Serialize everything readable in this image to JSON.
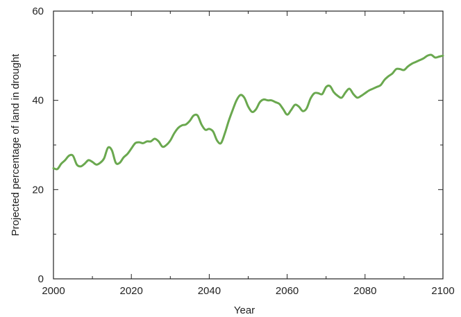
{
  "chart_data": {
    "type": "line",
    "title": "",
    "xlabel": "Year",
    "ylabel": "Projected percentage of land in drought",
    "xlim": [
      2000,
      2100
    ],
    "ylim": [
      0,
      60
    ],
    "x_ticks": [
      "2000",
      "2020",
      "2040",
      "2060",
      "2080",
      "2100"
    ],
    "y_ticks": [
      "0",
      "20",
      "40",
      "60"
    ],
    "grid": false,
    "legend": "none",
    "colors": {
      "line": "#6aa84f",
      "axis": "#222222"
    },
    "series": [
      {
        "x": [
          2000,
          2001,
          2002,
          2003,
          2004,
          2005,
          2006,
          2007,
          2008,
          2009,
          2010,
          2011,
          2012,
          2013,
          2014,
          2015,
          2016,
          2017,
          2018,
          2019,
          2020,
          2021,
          2022,
          2023,
          2024,
          2025,
          2026,
          2027,
          2028,
          2029,
          2030,
          2031,
          2032,
          2033,
          2034,
          2035,
          2036,
          2037,
          2038,
          2039,
          2040,
          2041,
          2042,
          2043,
          2044,
          2045,
          2046,
          2047,
          2048,
          2049,
          2050,
          2051,
          2052,
          2053,
          2054,
          2055,
          2056,
          2057,
          2058,
          2059,
          2060,
          2061,
          2062,
          2063,
          2064,
          2065,
          2066,
          2067,
          2068,
          2069,
          2070,
          2071,
          2072,
          2073,
          2074,
          2075,
          2076,
          2077,
          2078,
          2079,
          2080,
          2081,
          2082,
          2083,
          2084,
          2085,
          2086,
          2087,
          2088,
          2089,
          2090,
          2091,
          2092,
          2093,
          2094,
          2095,
          2096,
          2097,
          2098,
          2099,
          2100
        ],
        "values": [
          24.8,
          24.6,
          25.8,
          26.6,
          27.6,
          27.6,
          25.6,
          25.2,
          25.8,
          26.6,
          26.2,
          25.6,
          26.0,
          27.0,
          29.4,
          28.8,
          26.0,
          26.0,
          27.2,
          28.0,
          29.2,
          30.4,
          30.6,
          30.4,
          30.8,
          30.8,
          31.4,
          30.8,
          29.6,
          30.0,
          31.0,
          32.6,
          33.8,
          34.4,
          34.6,
          35.4,
          36.6,
          36.6,
          34.6,
          33.4,
          33.6,
          33.0,
          31.0,
          30.4,
          32.6,
          35.4,
          37.8,
          40.0,
          41.2,
          40.6,
          38.6,
          37.4,
          38.0,
          39.6,
          40.2,
          40.0,
          40.0,
          39.6,
          39.2,
          38.0,
          36.8,
          37.8,
          39.0,
          38.6,
          37.6,
          38.2,
          40.4,
          41.6,
          41.6,
          41.4,
          43.0,
          43.2,
          41.8,
          41.0,
          40.6,
          41.8,
          42.6,
          41.4,
          40.6,
          41.0,
          41.6,
          42.2,
          42.6,
          43.0,
          43.4,
          44.6,
          45.4,
          46.0,
          47.0,
          47.0,
          46.8,
          47.6,
          48.2,
          48.6,
          49.0,
          49.4,
          50.0,
          50.2,
          49.6,
          49.8,
          50.0
        ]
      }
    ]
  }
}
